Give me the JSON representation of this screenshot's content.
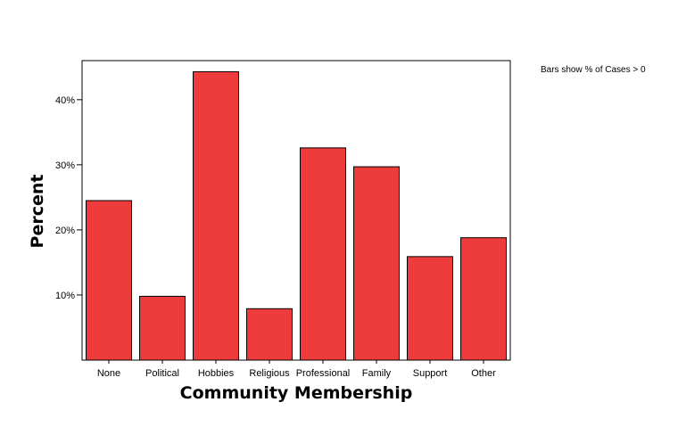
{
  "chart_data": {
    "type": "bar",
    "categories": [
      "None",
      "Political",
      "Hobbies",
      "Religious",
      "Professional",
      "Family",
      "Support",
      "Other"
    ],
    "values": [
      24.5,
      9.8,
      44.3,
      7.9,
      32.6,
      29.7,
      15.9,
      18.8
    ],
    "xlabel": "Community Membership",
    "ylabel": "Percent",
    "ylim": [
      0,
      46
    ],
    "yticks": [
      10,
      20,
      30,
      40
    ],
    "ytick_labels": [
      "10%",
      "20%",
      "30%",
      "40%"
    ],
    "note": "Bars show % of Cases > 0",
    "grid": false,
    "bar_color": "#ee3b3b"
  }
}
